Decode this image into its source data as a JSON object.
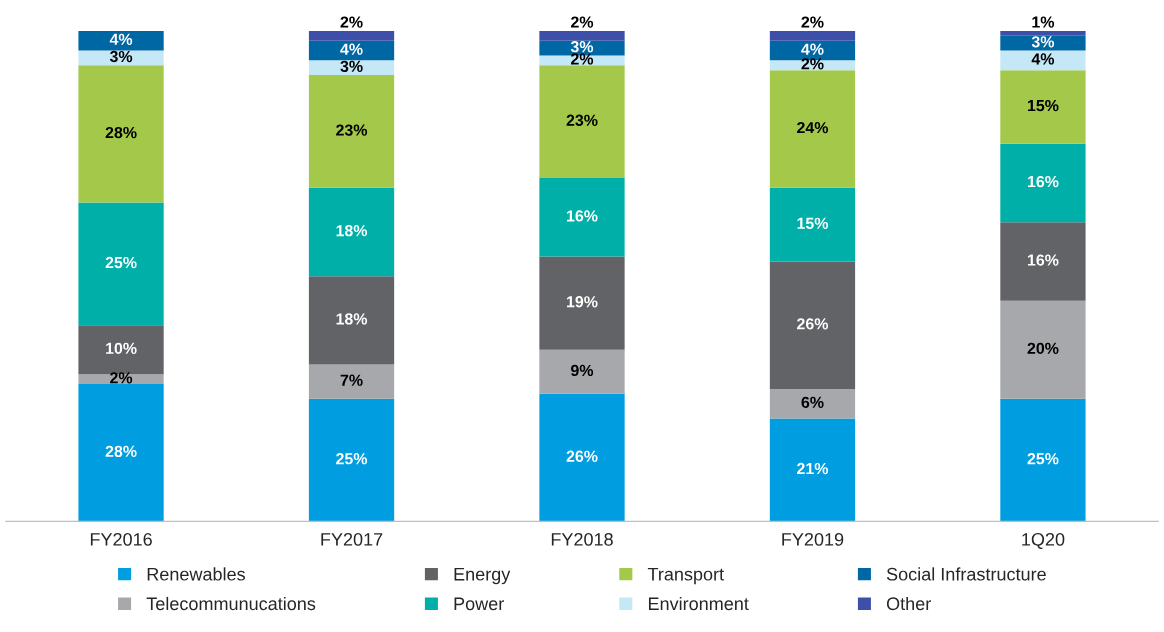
{
  "chart_data": {
    "type": "bar",
    "stacked": true,
    "legend": "bottom",
    "categories": [
      "FY2016",
      "FY2017",
      "FY2018",
      "FY2019",
      "1Q20"
    ],
    "series": [
      {
        "name": "Renewables",
        "color": "#009ee0",
        "values": [
          28,
          25,
          26,
          21,
          25
        ],
        "value_labels": [
          "28%",
          "25%",
          "26%",
          "21%",
          "25%"
        ]
      },
      {
        "name": "Telecommunucations",
        "color": "#a6a8ab",
        "values": [
          2,
          7,
          9,
          6,
          20
        ],
        "value_labels": [
          "2%",
          "7%",
          "9%",
          "6%",
          "20%"
        ]
      },
      {
        "name": "Energy",
        "color": "#626366",
        "values": [
          10,
          18,
          19,
          26,
          16
        ],
        "value_labels": [
          "10%",
          "18%",
          "19%",
          "26%",
          "16%"
        ]
      },
      {
        "name": "Power",
        "color": "#00b0a8",
        "values": [
          25,
          18,
          16,
          15,
          16
        ],
        "value_labels": [
          "25%",
          "18%",
          "16%",
          "15%",
          "16%"
        ]
      },
      {
        "name": "Transport",
        "color": "#a4c94a",
        "values": [
          28,
          23,
          23,
          24,
          15
        ],
        "value_labels": [
          "28%",
          "23%",
          "23%",
          "24%",
          "15%"
        ]
      },
      {
        "name": "Environment",
        "color": "#c5e8f7",
        "values": [
          3,
          3,
          2,
          2,
          4
        ],
        "value_labels": [
          "3%",
          "3%",
          "2%",
          "2%",
          "4%"
        ]
      },
      {
        "name": "Social Infrastructure",
        "color": "#0067a5",
        "values": [
          4,
          4,
          3,
          4,
          3
        ],
        "value_labels": [
          "4%",
          "4%",
          "3%",
          "4%",
          "3%"
        ]
      },
      {
        "name": "Other",
        "color": "#3d4fa8",
        "values": [
          null,
          2,
          2,
          2,
          1
        ],
        "value_labels": [
          null,
          "2%",
          "2%",
          "2%",
          "1%"
        ]
      }
    ]
  }
}
